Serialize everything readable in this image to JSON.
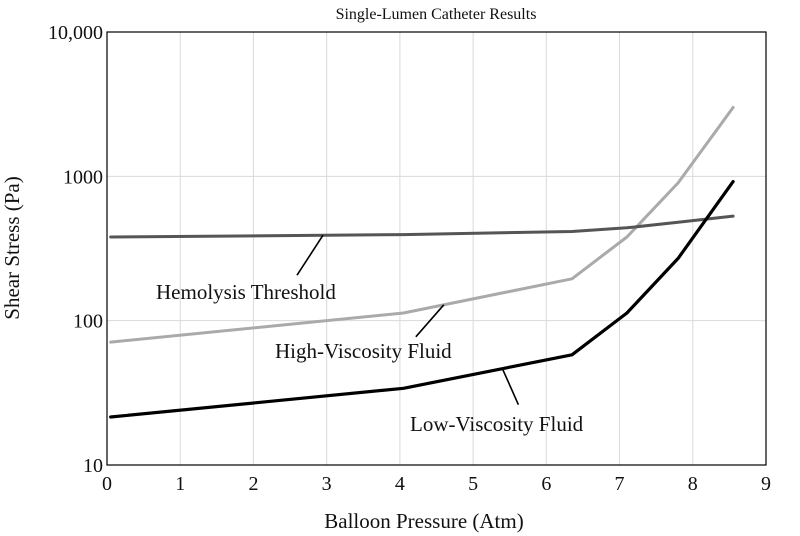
{
  "chart_data": {
    "type": "line",
    "title": "Single-Lumen Catheter Results",
    "xlabel": "Balloon Pressure (Atm)",
    "ylabel": "Shear Stress (Pa)",
    "xlim": [
      0,
      9
    ],
    "ylim": [
      10,
      10000
    ],
    "y_scale": "log",
    "grid": true,
    "x_ticks": [
      0,
      1,
      2,
      3,
      4,
      5,
      6,
      7,
      8,
      9
    ],
    "y_ticks": [
      {
        "value": 10,
        "label": "10"
      },
      {
        "value": 100,
        "label": "100"
      },
      {
        "value": 1000,
        "label": "1000"
      },
      {
        "value": 10000,
        "label": "10,000"
      }
    ],
    "series": [
      {
        "name": "Hemolysis Threshold",
        "color": "#555555",
        "x": [
          0.05,
          4.05,
          6.35,
          7.1,
          7.8,
          8.55
        ],
        "y": [
          380,
          395,
          415,
          440,
          480,
          530
        ]
      },
      {
        "name": "High-Viscosity Fluid",
        "color": "#aaaaaa",
        "x": [
          0.05,
          4.05,
          6.35,
          7.1,
          7.8,
          8.55
        ],
        "y": [
          71,
          113,
          195,
          380,
          900,
          3000
        ]
      },
      {
        "name": "Low-Viscosity Fluid",
        "color": "#000000",
        "x": [
          0.05,
          4.05,
          6.35,
          7.1,
          7.8,
          8.55
        ],
        "y": [
          21.5,
          34,
          58,
          113,
          270,
          920
        ]
      }
    ],
    "annotations": [
      {
        "text": "Hemolysis Threshold",
        "series": 0,
        "at_x": 2.95
      },
      {
        "text": "High-Viscosity Fluid",
        "series": 1,
        "at_x": 4.6
      },
      {
        "text": "Low-Viscosity Fluid",
        "series": 2,
        "at_x": 5.4
      }
    ]
  }
}
